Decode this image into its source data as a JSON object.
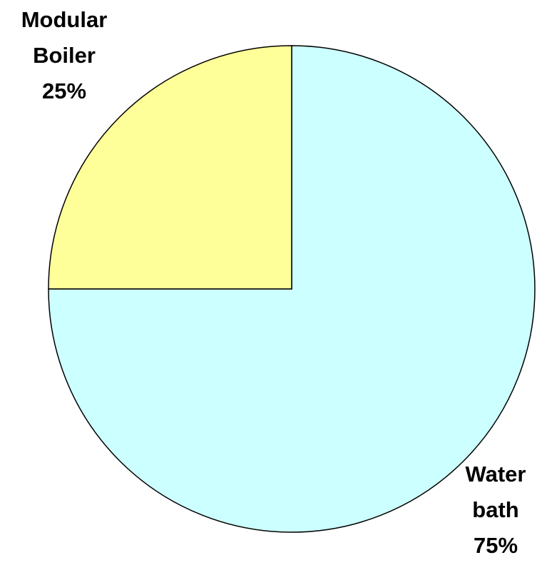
{
  "chart_data": {
    "type": "pie",
    "categories": [
      "Water bath",
      "Modular Boiler"
    ],
    "values": [
      75,
      25
    ],
    "value_labels": [
      "75%",
      "25%"
    ],
    "colors": [
      "#ccffff",
      "#ffff99"
    ]
  }
}
